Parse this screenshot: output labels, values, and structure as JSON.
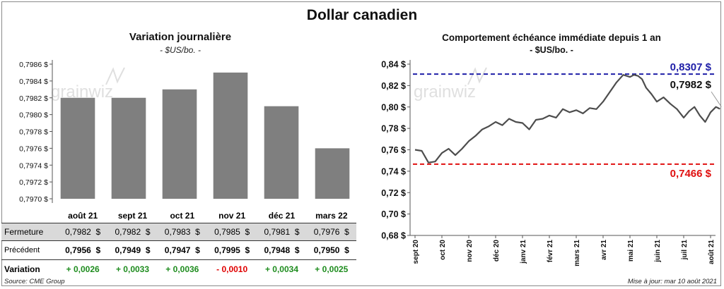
{
  "title": "Dollar canadien",
  "left_panel": {
    "title": "Variation  journalière",
    "unit": "- $US/bo. -",
    "watermark": "grainwiz"
  },
  "right_panel": {
    "title": "Comportement échéance immédiate depuis 1 an",
    "unit": "- $US/bo. -",
    "watermark": "grainwiz",
    "max_label": "0,8307 $",
    "min_label": "0,7466 $",
    "last_label": "0,7982 $"
  },
  "table": {
    "columns": [
      "août 21",
      "sept 21",
      "oct 21",
      "nov 21",
      "déc 21",
      "mars 22"
    ],
    "row_labels": {
      "fermeture": "Fermeture",
      "precedent": "Précédent",
      "variation": "Variation"
    },
    "fermeture": [
      "0,7982",
      "0,7982",
      "0,7983",
      "0,7985",
      "0,7981",
      "0,7976"
    ],
    "precedent": [
      "0,7956",
      "0,7949",
      "0,7947",
      "0,7995",
      "0,7948",
      "0,7950"
    ],
    "variation": [
      "+ 0,0026",
      "+ 0,0033",
      "+ 0,0036",
      "- 0,0010",
      "+ 0,0034",
      "+ 0,0025"
    ],
    "currency": "$"
  },
  "footer": {
    "source": "Source: CME Group",
    "updated": "Mise à jour: mar 10 août 2021"
  },
  "colors": {
    "bar": "#7f7f7f",
    "line": "#4d4d4d",
    "max_line": "#1f1fa8",
    "min_line": "#e01010",
    "positive": "#1e8c1e",
    "negative": "#e00000"
  },
  "chart_data": [
    {
      "type": "bar",
      "title": "Variation  journalière",
      "subtitle": "- $US/bo. -",
      "categories": [
        "août 21",
        "sept 21",
        "oct 21",
        "nov 21",
        "déc 21",
        "mars 22"
      ],
      "values": [
        0.7982,
        0.7982,
        0.7983,
        0.7985,
        0.7981,
        0.7976
      ],
      "ylim": [
        0.797,
        0.7986
      ],
      "yticks": [
        0.797,
        0.7972,
        0.7974,
        0.7976,
        0.7978,
        0.798,
        0.7982,
        0.7984,
        0.7986
      ],
      "ytick_labels": [
        "0,7970 $",
        "0,7972 $",
        "0,7974 $",
        "0,7976 $",
        "0,7978 $",
        "0,7980 $",
        "0,7982 $",
        "0,7984 $",
        "0,7986 $"
      ],
      "grid": false
    },
    {
      "type": "line",
      "title": "Comportement échéance immédiate depuis 1 an",
      "subtitle": "- $US/bo. -",
      "x_ticks": [
        "sept 20",
        "oct 20",
        "nov 20",
        "déc 20",
        "janv 21",
        "févr 21",
        "mars 21",
        "avr 21",
        "mai 21",
        "juin 21",
        "juil 21",
        "août 21"
      ],
      "ylim": [
        0.68,
        0.84
      ],
      "yticks": [
        0.68,
        0.7,
        0.72,
        0.74,
        0.76,
        0.78,
        0.8,
        0.82,
        0.84
      ],
      "ytick_labels": [
        "0,68 $",
        "0,70 $",
        "0,72 $",
        "0,74 $",
        "0,76 $",
        "0,78 $",
        "0,80 $",
        "0,82 $",
        "0,84 $"
      ],
      "reference_lines": [
        {
          "label": "0,8307 $",
          "value": 0.8307
        },
        {
          "label": "0,7466 $",
          "value": 0.7466
        }
      ],
      "last_value": 0.7982,
      "grid": false,
      "series": [
        {
          "x": [
            0,
            0.25,
            0.5,
            0.75,
            1.0,
            1.25,
            1.5,
            1.75,
            2.0,
            2.25,
            2.5,
            2.75,
            3.0,
            3.25,
            3.5,
            3.75,
            4.0,
            4.25,
            4.5,
            4.75,
            5.0,
            5.25,
            5.5,
            5.75,
            6.0,
            6.25,
            6.5,
            6.75,
            7.0,
            7.25,
            7.5,
            7.75,
            8.0,
            8.15,
            8.3,
            8.45,
            8.6,
            8.8,
            9.0,
            9.25,
            9.5,
            9.75,
            10.0,
            10.2,
            10.4,
            10.6,
            10.8,
            11.0,
            11.2,
            11.35
          ],
          "values": [
            0.76,
            0.759,
            0.748,
            0.749,
            0.757,
            0.761,
            0.755,
            0.761,
            0.768,
            0.773,
            0.779,
            0.782,
            0.786,
            0.783,
            0.789,
            0.786,
            0.785,
            0.779,
            0.788,
            0.789,
            0.792,
            0.79,
            0.798,
            0.795,
            0.797,
            0.794,
            0.799,
            0.798,
            0.805,
            0.814,
            0.823,
            0.83,
            0.828,
            0.83,
            0.829,
            0.826,
            0.818,
            0.812,
            0.805,
            0.809,
            0.803,
            0.798,
            0.79,
            0.796,
            0.8,
            0.792,
            0.786,
            0.795,
            0.8,
            0.7982
          ]
        }
      ]
    }
  ]
}
